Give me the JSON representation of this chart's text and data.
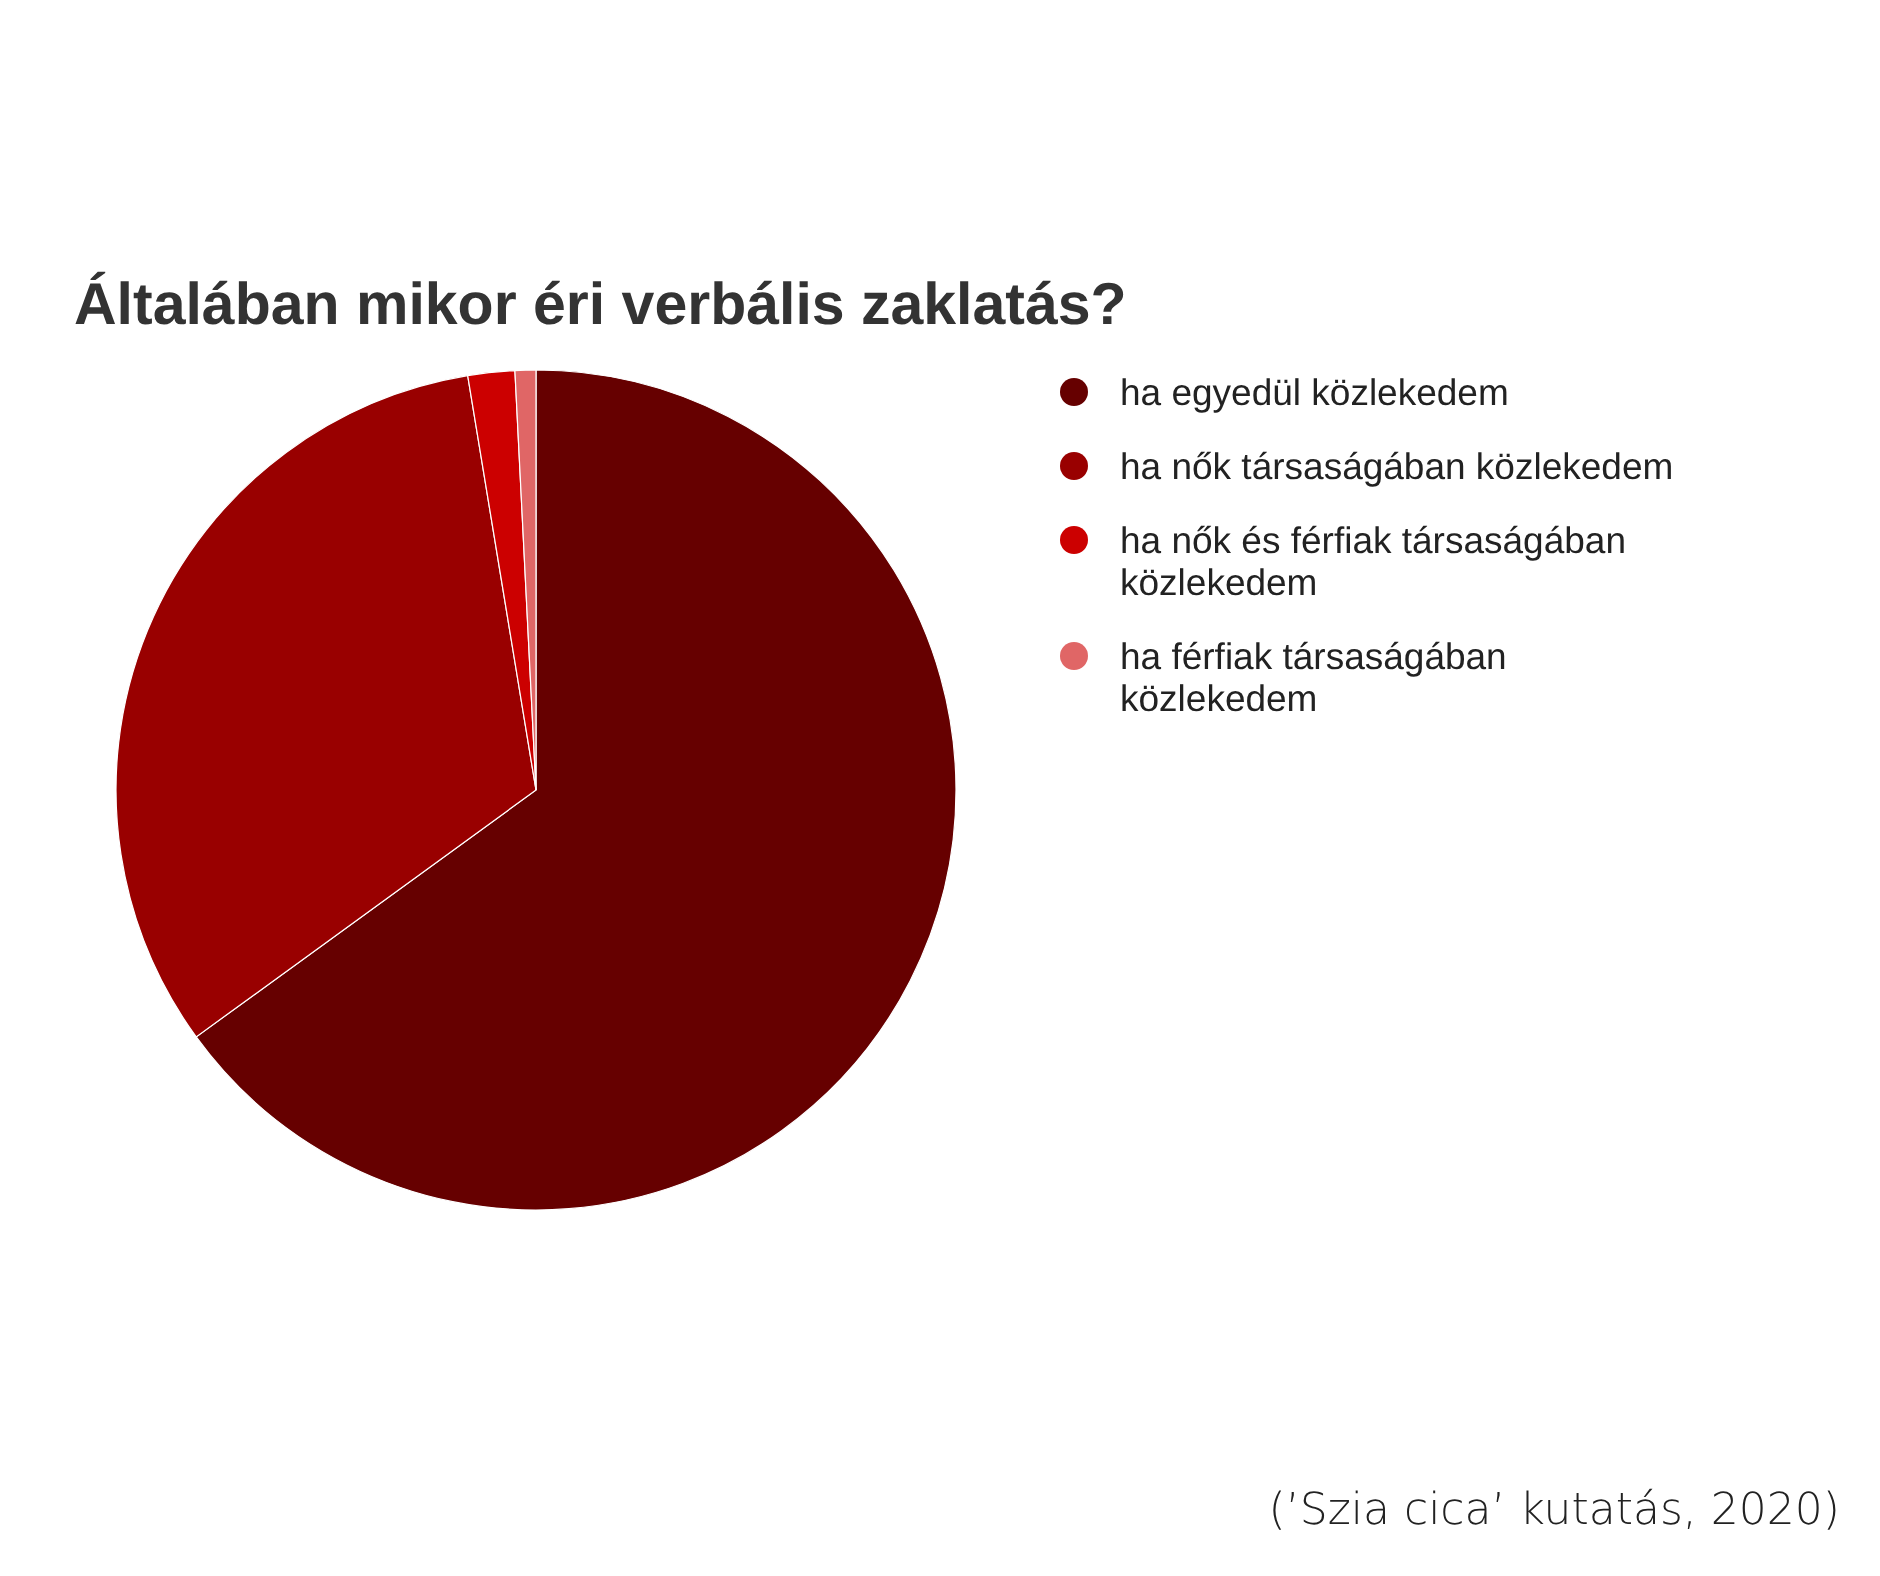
{
  "chart_data": {
    "type": "pie",
    "title": "Általában mikor éri verbális zaklatás?",
    "categories": [
      "ha egyedül közlekedem",
      "ha nők társaságában közlekedem",
      "ha nők és férfiak társaságában közlekedem",
      "ha férfiak társaságában közlekedem"
    ],
    "values": [
      65,
      32.4,
      1.8,
      0.8
    ],
    "colors": [
      "#660000",
      "#990000",
      "#cc0000",
      "#e06666"
    ],
    "legend": "right",
    "annotations": [
      "(’Szia cica’ kutatás, 2020)"
    ]
  }
}
